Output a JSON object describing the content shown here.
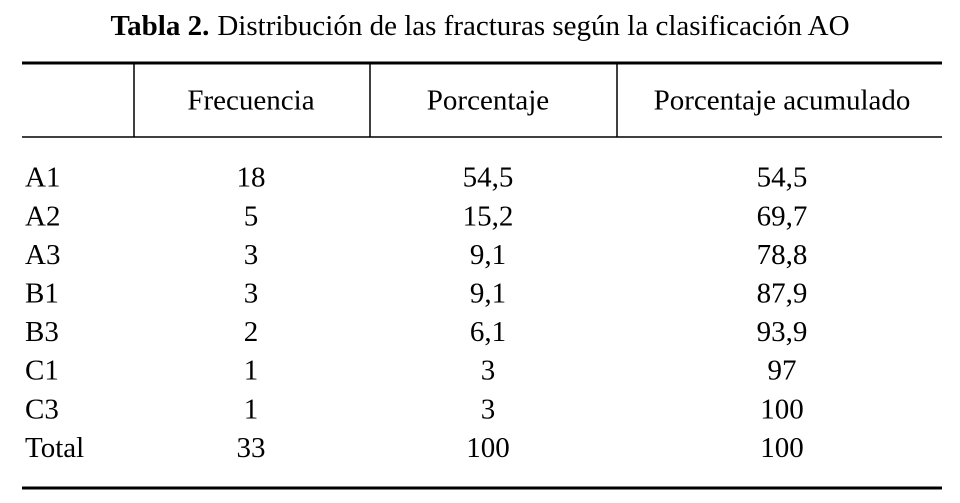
{
  "title": {
    "label": "Tabla 2.",
    "text": "Distribución de las fracturas según la clasificación AO"
  },
  "table": {
    "columns": [
      "Frecuencia",
      "Porcentaje",
      "Porcentaje acumulado"
    ],
    "rows": [
      [
        "A1",
        "18",
        "54,5",
        "54,5"
      ],
      [
        "A2",
        "5",
        "15,2",
        "69,7"
      ],
      [
        "A3",
        "3",
        "9,1",
        "78,8"
      ],
      [
        "B1",
        "3",
        "9,1",
        "87,9"
      ],
      [
        "B3",
        "2",
        "6,1",
        "93,9"
      ],
      [
        "C1",
        "1",
        "3",
        "97"
      ],
      [
        "C3",
        "1",
        "3",
        "100"
      ],
      [
        "Total",
        "33",
        "100",
        "100"
      ]
    ]
  }
}
